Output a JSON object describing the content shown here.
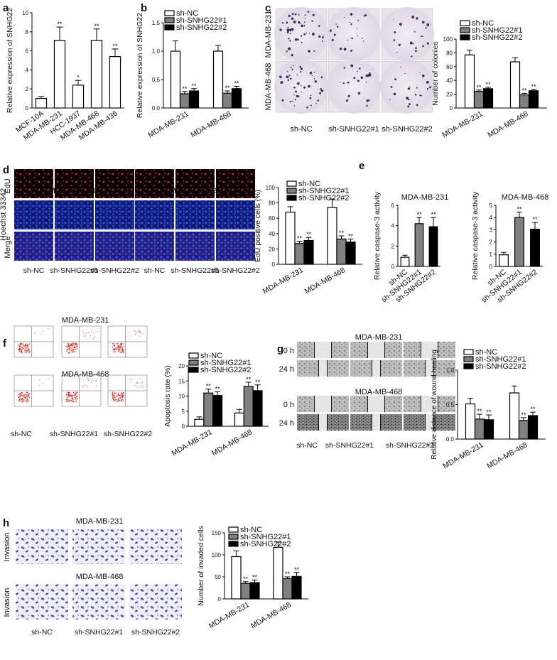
{
  "panels": {
    "a": {
      "letter": "a",
      "chart_data": {
        "type": "bar",
        "categories": [
          "MCF-10A",
          "MDA-MB-231",
          "HCC-1937",
          "MDA-MB-468",
          "MDA-MB-436"
        ],
        "values": [
          1.0,
          7.1,
          2.4,
          7.1,
          5.4
        ],
        "errors": [
          0.2,
          1.4,
          0.5,
          1.2,
          0.8
        ],
        "significance": [
          "",
          "**",
          "*",
          "**",
          "**"
        ],
        "ylabel": "Relative expression of SNHG22",
        "ylim": [
          0,
          10
        ],
        "yticks": [
          0,
          2,
          4,
          6,
          8,
          10
        ]
      }
    },
    "b": {
      "letter": "b",
      "chart_data": {
        "type": "bar",
        "categories": [
          "MDA-MB-231",
          "MDA-MB-468"
        ],
        "series": [
          {
            "name": "sh-NC",
            "values": [
              1.0,
              1.0
            ],
            "errors": [
              0.18,
              0.1
            ],
            "sig": [
              "",
              ""
            ]
          },
          {
            "name": "sh-SNHG22#1",
            "values": [
              0.25,
              0.26
            ],
            "errors": [
              0.04,
              0.04
            ],
            "sig": [
              "**",
              "**"
            ]
          },
          {
            "name": "sh-SNHG22#2",
            "values": [
              0.3,
              0.34
            ],
            "errors": [
              0.04,
              0.04
            ],
            "sig": [
              "**",
              "**"
            ]
          }
        ],
        "ylabel": "Relative expression of SNHG22",
        "ylim": [
          0,
          1.5
        ],
        "yticks": [
          "0.0",
          "0.5",
          "1.0",
          "1.5"
        ]
      }
    },
    "c": {
      "letter": "c",
      "rows": [
        "MDA-MB-231",
        "MDA-MB-468"
      ],
      "cols": [
        "sh-NC",
        "sh-SNHG22#1",
        "sh-SNHG22#2"
      ],
      "chart_data": {
        "type": "bar",
        "categories": [
          "MDA-MB-231",
          "MDA-MB-468"
        ],
        "series": [
          {
            "name": "sh-NC",
            "values": [
              77,
              67
            ],
            "errors": [
              7,
              6
            ],
            "sig": [
              "",
              ""
            ]
          },
          {
            "name": "sh-SNHG22#1",
            "values": [
              24,
              19
            ],
            "errors": [
              2,
              2
            ],
            "sig": [
              "**",
              "**"
            ]
          },
          {
            "name": "sh-SNHG22#2",
            "values": [
              28,
              25
            ],
            "errors": [
              2,
              2
            ],
            "sig": [
              "**",
              "**"
            ]
          }
        ],
        "ylabel": "Number of colonies",
        "ylim": [
          0,
          100
        ],
        "yticks": [
          0,
          20,
          40,
          60,
          80,
          100
        ]
      }
    },
    "d": {
      "letter": "d",
      "groups": [
        "MDA-MB-231",
        "MDA-MB-468"
      ],
      "rows": [
        "EdU",
        "Hoechst 33342",
        "Merge"
      ],
      "cols": [
        "sh-NC",
        "sh-SNHG22#1",
        "sh-SNHG22#2",
        "sh-NC",
        "sh-SNHG22#1",
        "sh-SNHG22#2"
      ],
      "chart_data": {
        "type": "bar",
        "categories": [
          "MDA-MB-231",
          "MDA-MB-468"
        ],
        "series": [
          {
            "name": "sh-NC",
            "values": [
              68,
              74
            ],
            "errors": [
              7,
              11
            ],
            "sig": [
              "",
              ""
            ]
          },
          {
            "name": "sh-SNHG22#1",
            "values": [
              27,
              33
            ],
            "errors": [
              3,
              4
            ],
            "sig": [
              "**",
              "**"
            ]
          },
          {
            "name": "sh-SNHG22#2",
            "values": [
              31,
              29
            ],
            "errors": [
              4,
              4
            ],
            "sig": [
              "**",
              "**"
            ]
          }
        ],
        "ylabel": "EdU positive cells (%)",
        "ylim": [
          0,
          100
        ],
        "yticks": [
          0,
          20,
          40,
          60,
          80,
          100
        ]
      }
    },
    "e": {
      "letter": "e",
      "charts": [
        {
          "type": "bar",
          "title": "MDA-MB-231",
          "categories": [
            "sh-NC",
            "sh-SNHG22#1",
            "sh-SNHG22#2"
          ],
          "values": [
            0.9,
            4.2,
            3.9
          ],
          "errors": [
            0.2,
            0.6,
            0.9
          ],
          "significance": [
            "",
            "**",
            "**"
          ],
          "ylabel": "Relative caspase-3 activity",
          "ylim": [
            0,
            6
          ],
          "yticks": [
            0,
            2,
            4,
            6
          ]
        },
        {
          "type": "bar",
          "title": "MDA-MB-468",
          "categories": [
            "sh-NC",
            "sh-SNHG22#1",
            "sh-SNHG22#2"
          ],
          "values": [
            0.95,
            4.0,
            3.05
          ],
          "errors": [
            0.2,
            0.45,
            0.55
          ],
          "significance": [
            "",
            "**",
            "**"
          ],
          "ylabel": "Relative caspase-3 activity",
          "ylim": [
            0,
            5
          ],
          "yticks": [
            0,
            1,
            2,
            3,
            4,
            5
          ]
        }
      ]
    },
    "f": {
      "letter": "f",
      "groups": [
        "MDA-MB-231",
        "MDA-MB-468"
      ],
      "cols": [
        "sh-NC",
        "sh-SNHG22#1",
        "sh-SNHG22#2"
      ],
      "chart_data": {
        "type": "bar",
        "categories": [
          "MDA-MB-231",
          "MDA-MB-468"
        ],
        "series": [
          {
            "name": "sh-NC",
            "values": [
              2.3,
              4.4
            ],
            "errors": [
              0.8,
              1.2
            ],
            "sig": [
              "",
              ""
            ]
          },
          {
            "name": "sh-SNHG22#1",
            "values": [
              11.0,
              13.2
            ],
            "errors": [
              1.3,
              1.4
            ],
            "sig": [
              "**",
              "**"
            ]
          },
          {
            "name": "sh-SNHG22#2",
            "values": [
              10.2,
              11.8
            ],
            "errors": [
              1.2,
              1.9
            ],
            "sig": [
              "**",
              "**"
            ]
          }
        ],
        "ylabel": "Apoptosis rate (%)",
        "ylim": [
          0,
          20
        ],
        "yticks": [
          0,
          5,
          10,
          15,
          20
        ]
      }
    },
    "g": {
      "letter": "g",
      "groups": [
        "MDA-MB-231",
        "MDA-MB-468"
      ],
      "rows": [
        "0 h",
        "24 h"
      ],
      "cols": [
        "sh-NC",
        "sh-SNHG22#1",
        "sh-SNHG22#2"
      ],
      "chart_data": {
        "type": "bar",
        "categories": [
          "MDA-MB-231",
          "MDA-MB-468"
        ],
        "series": [
          {
            "name": "sh-NC",
            "values": [
              0.51,
              0.67
            ],
            "errors": [
              0.08,
              0.1
            ],
            "sig": [
              "",
              ""
            ]
          },
          {
            "name": "sh-SNHG22#1",
            "values": [
              0.29,
              0.27
            ],
            "errors": [
              0.07,
              0.04
            ],
            "sig": [
              "**",
              "**"
            ]
          },
          {
            "name": "sh-SNHG22#2",
            "values": [
              0.28,
              0.34
            ],
            "errors": [
              0.07,
              0.05
            ],
            "sig": [
              "**",
              "**"
            ]
          }
        ],
        "ylabel": "Relative distance of wound healing",
        "ylim": [
          0,
          1.0
        ],
        "yticks": [
          "0.0",
          "0.5",
          "1.0"
        ]
      }
    },
    "h": {
      "letter": "h",
      "groups": [
        "MDA-MB-231",
        "MDA-MB-468"
      ],
      "row": "Invasion",
      "cols": [
        "sh-NC",
        "sh-SNHG22#1",
        "sh-SNHG22#2"
      ],
      "chart_data": {
        "type": "bar",
        "categories": [
          "MDA-MB-231",
          "MDA-MB-468"
        ],
        "series": [
          {
            "name": "sh-NC",
            "values": [
              96,
              117
            ],
            "errors": [
              13,
              12
            ],
            "sig": [
              "",
              ""
            ]
          },
          {
            "name": "sh-SNHG22#1",
            "values": [
              35,
              46
            ],
            "errors": [
              4,
              4
            ],
            "sig": [
              "**",
              "**"
            ]
          },
          {
            "name": "sh-SNHG22#2",
            "values": [
              37,
              51
            ],
            "errors": [
              6,
              9
            ],
            "sig": [
              "**",
              "**"
            ]
          }
        ],
        "ylabel": "Number of invaded cells",
        "ylim": [
          0,
          150
        ],
        "yticks": [
          0,
          50,
          100,
          150
        ]
      }
    }
  },
  "colors": {
    "sh-NC": "#ffffff",
    "sh-SNHG22#1": "#808080",
    "sh-SNHG22#2": "#000000",
    "edu": "#d8262b",
    "hoechst": "#2b3ed6",
    "colony": "#3b2a5e",
    "invasion": "#5b52b8"
  }
}
